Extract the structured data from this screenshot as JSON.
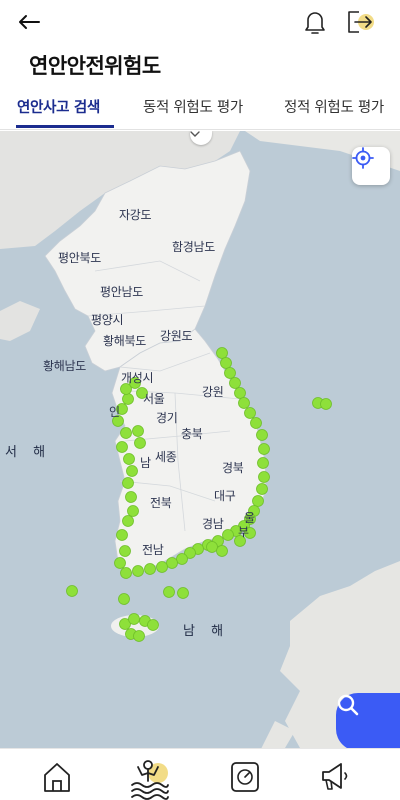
{
  "header": {
    "back_icon": "arrow-left-icon",
    "bell_icon": "bell-icon",
    "logout_icon": "logout-icon",
    "title": "연안안전위험도"
  },
  "tabs": [
    {
      "label": "연안사고 검색",
      "active": true
    },
    {
      "label": "동적 위험도 평가",
      "active": false
    },
    {
      "label": "정적 위험도 평가",
      "active": false
    }
  ],
  "map": {
    "collapse_icon": "chevron-down-icon",
    "locate_icon": "crosshair-icon",
    "search_icon": "search-icon",
    "marker_color": "#8ee03a",
    "labels": {
      "jagang": "자강도",
      "hamgyeongnam": "함경남도",
      "pyeongbuk": "평안북도",
      "pyeongnam": "평안남도",
      "pyongyang": "평양시",
      "hwanghaebuk": "황해북도",
      "hwanghaenam": "황해남도",
      "gangwon_n": "강원도",
      "kaesong": "개성시",
      "seoul": "서울",
      "gyeonggi": "경기",
      "gangwon_s": "강원",
      "chungbuk": "충북",
      "incheon": "인",
      "chungnam": "남",
      "sejong": "세종",
      "gyeongbuk": "경북",
      "daegu": "대구",
      "jeonbuk": "전북",
      "gyeongnam": "경남",
      "ulsan": "울",
      "busan": "부",
      "jeonnam": "전남",
      "yellow_sea": "서 해",
      "south_sea": "남 해"
    }
  },
  "bottom_nav": [
    {
      "name": "home",
      "icon": "home-icon"
    },
    {
      "name": "coastal-safety",
      "icon": "swimmer-icon",
      "active": true
    },
    {
      "name": "dashboard",
      "icon": "gauge-icon"
    },
    {
      "name": "announcement",
      "icon": "megaphone-icon"
    }
  ]
}
